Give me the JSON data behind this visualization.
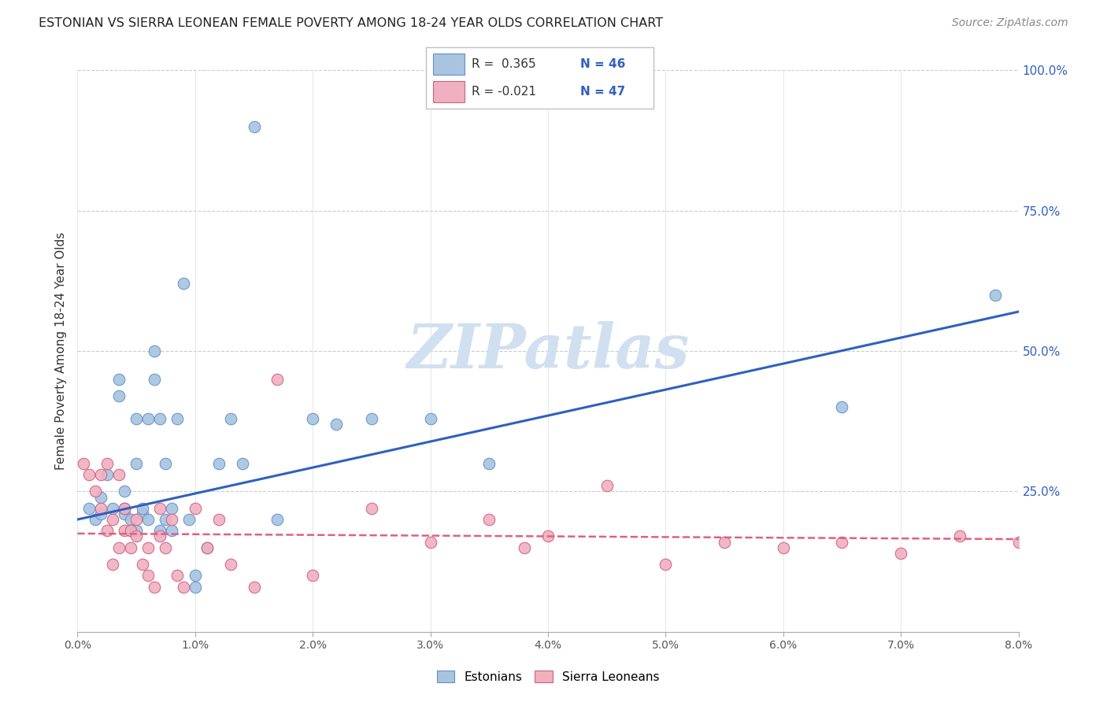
{
  "title": "ESTONIAN VS SIERRA LEONEAN FEMALE POVERTY AMONG 18-24 YEAR OLDS CORRELATION CHART",
  "source": "Source: ZipAtlas.com",
  "ylabel": "Female Poverty Among 18-24 Year Olds",
  "legend_label_blue": "Estonians",
  "legend_label_pink": "Sierra Leoneans",
  "blue_color": "#a8c4e0",
  "pink_color": "#f0b0c0",
  "blue_edge_color": "#6090c8",
  "pink_edge_color": "#d06080",
  "blue_line_color": "#3060c0",
  "pink_line_color": "#e06080",
  "watermark": "ZIPatlas",
  "watermark_color": "#d0e0f0",
  "blue_R": 0.365,
  "blue_N": 46,
  "pink_R": -0.021,
  "pink_N": 47,
  "xmin": 0.0,
  "xmax": 8.0,
  "ymin": 0.0,
  "ymax": 1.0,
  "blue_points_x": [
    0.1,
    0.15,
    0.2,
    0.2,
    0.25,
    0.3,
    0.35,
    0.35,
    0.4,
    0.4,
    0.4,
    0.45,
    0.45,
    0.5,
    0.5,
    0.5,
    0.55,
    0.55,
    0.6,
    0.6,
    0.65,
    0.65,
    0.7,
    0.7,
    0.75,
    0.75,
    0.8,
    0.8,
    0.85,
    0.9,
    0.95,
    1.0,
    1.0,
    1.1,
    1.2,
    1.3,
    1.4,
    1.5,
    1.7,
    2.0,
    2.2,
    2.5,
    3.0,
    3.5,
    6.5,
    7.8
  ],
  "blue_points_y": [
    0.22,
    0.2,
    0.21,
    0.24,
    0.28,
    0.22,
    0.42,
    0.45,
    0.21,
    0.22,
    0.25,
    0.2,
    0.18,
    0.38,
    0.3,
    0.18,
    0.21,
    0.22,
    0.2,
    0.38,
    0.45,
    0.5,
    0.38,
    0.18,
    0.2,
    0.3,
    0.22,
    0.18,
    0.38,
    0.62,
    0.2,
    0.1,
    0.08,
    0.15,
    0.3,
    0.38,
    0.3,
    0.9,
    0.2,
    0.38,
    0.37,
    0.38,
    0.38,
    0.3,
    0.4,
    0.6
  ],
  "pink_points_x": [
    0.05,
    0.1,
    0.15,
    0.2,
    0.2,
    0.25,
    0.25,
    0.3,
    0.3,
    0.35,
    0.35,
    0.4,
    0.4,
    0.45,
    0.45,
    0.5,
    0.5,
    0.55,
    0.6,
    0.6,
    0.65,
    0.7,
    0.7,
    0.75,
    0.8,
    0.85,
    0.9,
    1.0,
    1.1,
    1.2,
    1.3,
    1.5,
    1.7,
    2.0,
    2.5,
    3.0,
    3.5,
    3.8,
    4.0,
    4.5,
    5.0,
    5.5,
    6.0,
    6.5,
    7.0,
    7.5,
    8.0
  ],
  "pink_points_y": [
    0.3,
    0.28,
    0.25,
    0.28,
    0.22,
    0.18,
    0.3,
    0.2,
    0.12,
    0.28,
    0.15,
    0.22,
    0.18,
    0.18,
    0.15,
    0.2,
    0.17,
    0.12,
    0.15,
    0.1,
    0.08,
    0.22,
    0.17,
    0.15,
    0.2,
    0.1,
    0.08,
    0.22,
    0.15,
    0.2,
    0.12,
    0.08,
    0.45,
    0.1,
    0.22,
    0.16,
    0.2,
    0.15,
    0.17,
    0.26,
    0.12,
    0.16,
    0.15,
    0.16,
    0.14,
    0.17,
    0.16
  ]
}
